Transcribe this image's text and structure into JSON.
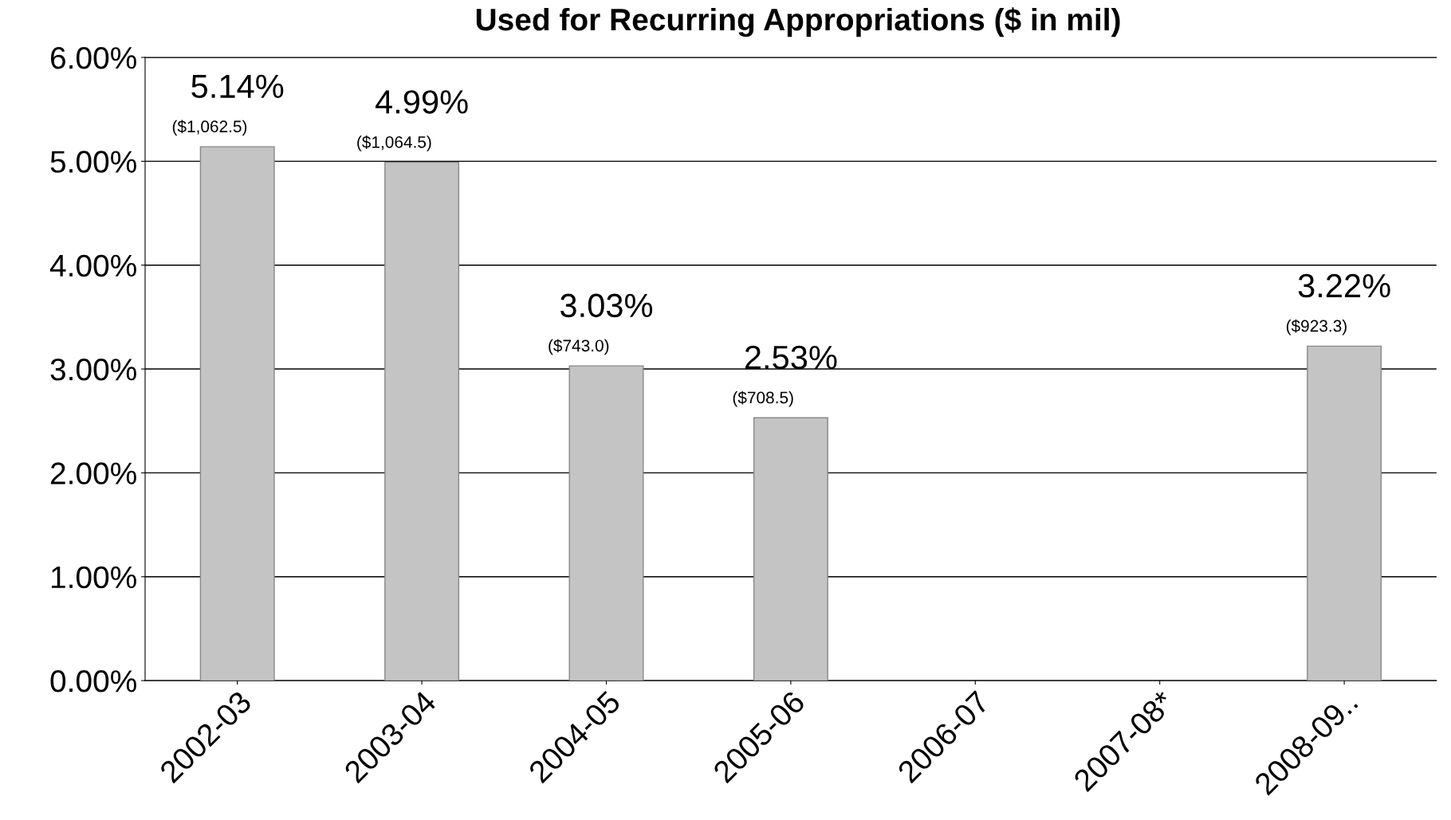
{
  "chart_data": {
    "type": "bar",
    "title": "Used for Recurring Appropriations ($ in mil)",
    "categories": [
      "2002-03",
      "2003-04",
      "2004-05",
      "2005-06",
      "2006-07",
      "2007-08*",
      "2008-09.."
    ],
    "values": [
      5.14,
      4.99,
      3.03,
      2.53,
      null,
      null,
      3.22
    ],
    "value_labels": [
      "5.14%",
      "4.99%",
      "3.03%",
      "2.53%",
      null,
      null,
      "3.22%"
    ],
    "color": "#c4c4c4",
    "annotations": [
      {
        "text": "($1,062.5)",
        "x": "2002-03",
        "y": 5.14
      },
      {
        "text": "($1,064.5)",
        "x": "2003-04",
        "y": 4.99
      },
      {
        "text": "($743.0)",
        "x": "2004-05",
        "y": 3.03
      },
      {
        "text": "($708.5)",
        "x": "2005-06",
        "y": 2.53
      },
      {
        "text": "($923.3)",
        "x": "2008-09..",
        "y": 3.22
      }
    ],
    "ylim": [
      0,
      6
    ],
    "yticks": [
      {
        "value": 0,
        "label": "0.00%"
      },
      {
        "value": 1,
        "label": "1.00%"
      },
      {
        "value": 2,
        "label": "2.00%"
      },
      {
        "value": 3,
        "label": "3.00%"
      },
      {
        "value": 4,
        "label": "4.00%"
      },
      {
        "value": 5,
        "label": "5.00%"
      },
      {
        "value": 6,
        "label": "6.00%"
      }
    ],
    "grid": "y",
    "legend": false
  }
}
